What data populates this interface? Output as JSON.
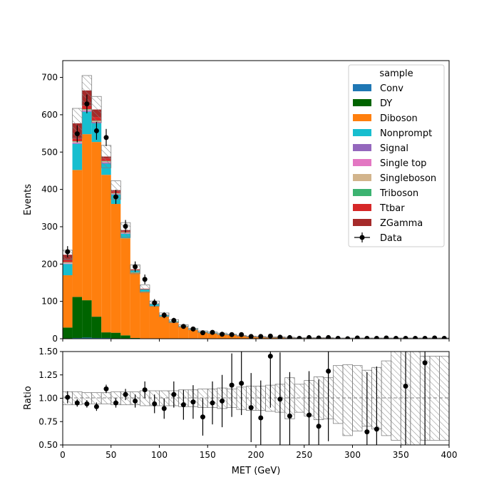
{
  "chart_data": [
    {
      "type": "bar",
      "stacked": true,
      "x_bin_edges": [
        0,
        10,
        20,
        30,
        40,
        50,
        60,
        70,
        80,
        90,
        100,
        110,
        120,
        130,
        140,
        150,
        160,
        170,
        180,
        190,
        200,
        210,
        220,
        230,
        240,
        250,
        260,
        270,
        280,
        290,
        300,
        310,
        320,
        330,
        340,
        350,
        360,
        370,
        380,
        390,
        400
      ],
      "xlim": [
        0,
        400
      ],
      "ylim": [
        0,
        745
      ],
      "ylabel": "Events",
      "yticks": [
        0,
        100,
        200,
        300,
        400,
        500,
        600,
        700
      ],
      "legend": {
        "title": "sample",
        "placement": "top-right"
      },
      "series": [
        {
          "name": "Conv",
          "color": "#1f77b4",
          "values": [
            0,
            2,
            3,
            2,
            2,
            1,
            1,
            0,
            0,
            0,
            0,
            0,
            0,
            0,
            0,
            0,
            0,
            0,
            0,
            0,
            0,
            0,
            0,
            0,
            0,
            0,
            0,
            0,
            0,
            0,
            0,
            0,
            0,
            0,
            0,
            0,
            0,
            0,
            0,
            0
          ]
        },
        {
          "name": "DY",
          "color": "#006400",
          "values": [
            30,
            110,
            100,
            57,
            15,
            15,
            8,
            2,
            1,
            0,
            0,
            0,
            0,
            0,
            0,
            0,
            0,
            0,
            0,
            0,
            0,
            0,
            0,
            0,
            0,
            0,
            0,
            0,
            0,
            0,
            0,
            0,
            0,
            0,
            0,
            0,
            0,
            0,
            0,
            0
          ]
        },
        {
          "name": "Diboson",
          "color": "#ff7f0e",
          "values": [
            140,
            340,
            445,
            468,
            422,
            345,
            260,
            175,
            125,
            88,
            60,
            45,
            33,
            25,
            18,
            15,
            12,
            10,
            8,
            6,
            5,
            4,
            4,
            3,
            2,
            2,
            2,
            2,
            1,
            1,
            1,
            1,
            1,
            1,
            1,
            1,
            1,
            1,
            1,
            1
          ]
        },
        {
          "name": "Nonprompt",
          "color": "#17becf",
          "values": [
            30,
            70,
            60,
            50,
            30,
            25,
            12,
            6,
            6,
            5,
            3,
            2,
            1,
            1,
            1,
            1,
            1,
            1,
            0,
            0,
            0,
            0,
            0,
            0,
            0,
            0,
            0,
            0,
            0,
            0,
            0,
            0,
            0,
            0,
            0,
            0,
            0,
            0,
            0,
            0
          ]
        },
        {
          "name": "Signal",
          "color": "#9467bd",
          "values": [
            1,
            2,
            2,
            2,
            2,
            1,
            1,
            0,
            0,
            0,
            0,
            0,
            0,
            0,
            0,
            0,
            0,
            0,
            0,
            0,
            0,
            0,
            0,
            0,
            0,
            0,
            0,
            0,
            0,
            0,
            0,
            0,
            0,
            0,
            0,
            0,
            0,
            0,
            0,
            0
          ]
        },
        {
          "name": "Single top",
          "color": "#e377c2",
          "values": [
            1,
            2,
            2,
            2,
            2,
            1,
            1,
            0,
            0,
            0,
            0,
            0,
            0,
            0,
            0,
            0,
            0,
            0,
            0,
            0,
            0,
            0,
            0,
            0,
            0,
            0,
            0,
            0,
            0,
            0,
            0,
            0,
            0,
            0,
            0,
            0,
            0,
            0,
            0,
            0
          ]
        },
        {
          "name": "Singleboson",
          "color": "#d2b48c",
          "values": [
            2,
            2,
            2,
            2,
            2,
            1,
            1,
            0,
            0,
            0,
            0,
            0,
            0,
            0,
            0,
            0,
            0,
            0,
            0,
            0,
            0,
            0,
            0,
            0,
            0,
            0,
            0,
            0,
            0,
            0,
            0,
            0,
            0,
            0,
            0,
            0,
            0,
            0,
            0,
            0
          ]
        },
        {
          "name": "Triboson",
          "color": "#3cb371",
          "values": [
            1,
            1,
            1,
            1,
            1,
            1,
            1,
            0,
            0,
            0,
            0,
            0,
            0,
            0,
            0,
            0,
            0,
            0,
            0,
            0,
            0,
            0,
            0,
            0,
            0,
            0,
            0,
            0,
            0,
            0,
            0,
            0,
            0,
            0,
            0,
            0,
            0,
            0,
            0,
            0
          ]
        },
        {
          "name": "Ttbar",
          "color": "#d62728",
          "values": [
            5,
            8,
            10,
            10,
            7,
            5,
            3,
            1,
            1,
            0,
            0,
            0,
            0,
            0,
            0,
            0,
            0,
            0,
            0,
            0,
            0,
            0,
            0,
            0,
            0,
            0,
            0,
            0,
            0,
            0,
            0,
            0,
            0,
            0,
            0,
            0,
            0,
            0,
            0,
            0
          ]
        },
        {
          "name": "ZGamma",
          "color": "#a52a2a",
          "values": [
            15,
            40,
            40,
            20,
            5,
            3,
            3,
            2,
            1,
            1,
            1,
            0,
            0,
            0,
            0,
            0,
            0,
            0,
            0,
            0,
            0,
            0,
            0,
            0,
            0,
            0,
            0,
            0,
            0,
            0,
            0,
            0,
            0,
            0,
            0,
            0,
            0,
            0,
            0,
            0
          ]
        }
      ],
      "mc_uncertainty": [
        12,
        40,
        40,
        35,
        30,
        25,
        20,
        12,
        10,
        7,
        5,
        4,
        3,
        2,
        2,
        2,
        2,
        1,
        1,
        1,
        1,
        1,
        1,
        1,
        1,
        1,
        1,
        1,
        1,
        1,
        1,
        1,
        1,
        1,
        1,
        1,
        1,
        1,
        1,
        1
      ],
      "data": {
        "name": "Data",
        "x": [
          5,
          15,
          25,
          35,
          45,
          55,
          65,
          75,
          85,
          95,
          105,
          115,
          125,
          135,
          145,
          155,
          165,
          175,
          185,
          195,
          205,
          215,
          225,
          235,
          245,
          255,
          265,
          275,
          285,
          295,
          305,
          315,
          325,
          335,
          345,
          355,
          365,
          375,
          385,
          395
        ],
        "y": [
          233,
          549,
          629,
          557,
          539,
          380,
          301,
          193,
          159,
          96,
          63,
          49,
          33,
          26,
          16,
          17,
          12,
          11,
          11,
          6,
          6,
          7,
          4,
          3,
          1,
          3,
          2,
          3,
          1,
          0,
          2,
          1,
          1,
          2,
          1,
          1,
          1,
          1,
          2,
          1
        ],
        "yerr": [
          15,
          23,
          25,
          24,
          23,
          19,
          17,
          14,
          13,
          10,
          8,
          7,
          6,
          5,
          4,
          4,
          3.5,
          3.3,
          3.3,
          2.4,
          2.4,
          2.6,
          2,
          1.7,
          1,
          1.7,
          1.4,
          1.7,
          1,
          0,
          1.4,
          1,
          1,
          1.4,
          1,
          1,
          1,
          1,
          1.4,
          1
        ]
      }
    },
    {
      "type": "scatter",
      "xlabel": "MET (GeV)",
      "ylabel": "Ratio",
      "xlim": [
        0,
        400
      ],
      "ylim": [
        0.5,
        1.5
      ],
      "xticks": [
        0,
        50,
        100,
        150,
        200,
        250,
        300,
        350,
        400
      ],
      "yticks": [
        0.5,
        0.75,
        1.0,
        1.25,
        1.5
      ],
      "ytick_labels": [
        "0.50",
        "0.75",
        "1.00",
        "1.25",
        "1.50"
      ],
      "reference_line": 1.0,
      "ratio": {
        "x": [
          5,
          15,
          25,
          35,
          45,
          55,
          65,
          75,
          85,
          95,
          105,
          115,
          125,
          135,
          145,
          155,
          165,
          175,
          185,
          195,
          205,
          215,
          225,
          235,
          245,
          255,
          265,
          275,
          305,
          315,
          325,
          355,
          375
        ],
        "y": [
          1.01,
          0.95,
          0.94,
          0.91,
          1.1,
          0.95,
          1.04,
          0.97,
          1.09,
          0.94,
          0.89,
          1.04,
          0.93,
          0.96,
          0.8,
          0.95,
          0.97,
          1.14,
          1.16,
          0.9,
          0.79,
          1.45,
          0.99,
          0.81,
          null,
          0.82,
          0.7,
          1.29,
          null,
          0.64,
          0.67,
          1.13,
          1.38
        ],
        "yerr": [
          0.065,
          0.04,
          0.04,
          0.045,
          0.045,
          0.05,
          0.06,
          0.07,
          0.09,
          0.1,
          0.11,
          0.14,
          0.16,
          0.18,
          0.2,
          0.23,
          0.28,
          0.34,
          0.34,
          0.37,
          0.4,
          0.55,
          0.5,
          0.47,
          null,
          0.47,
          0.5,
          0.75,
          null,
          0.64,
          0.67,
          1.13,
          1.38
        ]
      },
      "uncertainty_band": {
        "lower": [
          0.93,
          0.93,
          0.94,
          0.94,
          0.94,
          0.93,
          0.93,
          0.93,
          0.92,
          0.92,
          0.92,
          0.92,
          0.91,
          0.91,
          0.9,
          0.9,
          0.89,
          0.9,
          0.88,
          0.87,
          0.87,
          0.86,
          0.85,
          0.78,
          0.85,
          0.81,
          0.77,
          0.78,
          0.73,
          0.6,
          0.65,
          0.7,
          0.67,
          0.6,
          0.55,
          0.5,
          0.5,
          0.55,
          0.55,
          0.55
        ],
        "upper": [
          1.07,
          1.07,
          1.06,
          1.06,
          1.06,
          1.07,
          1.07,
          1.07,
          1.08,
          1.08,
          1.08,
          1.08,
          1.09,
          1.09,
          1.1,
          1.1,
          1.11,
          1.1,
          1.12,
          1.13,
          1.13,
          1.14,
          1.15,
          1.22,
          1.15,
          1.19,
          1.23,
          1.22,
          1.35,
          1.36,
          1.35,
          1.3,
          1.33,
          1.4,
          1.5,
          1.5,
          1.5,
          1.45,
          1.45,
          1.45
        ]
      }
    }
  ]
}
